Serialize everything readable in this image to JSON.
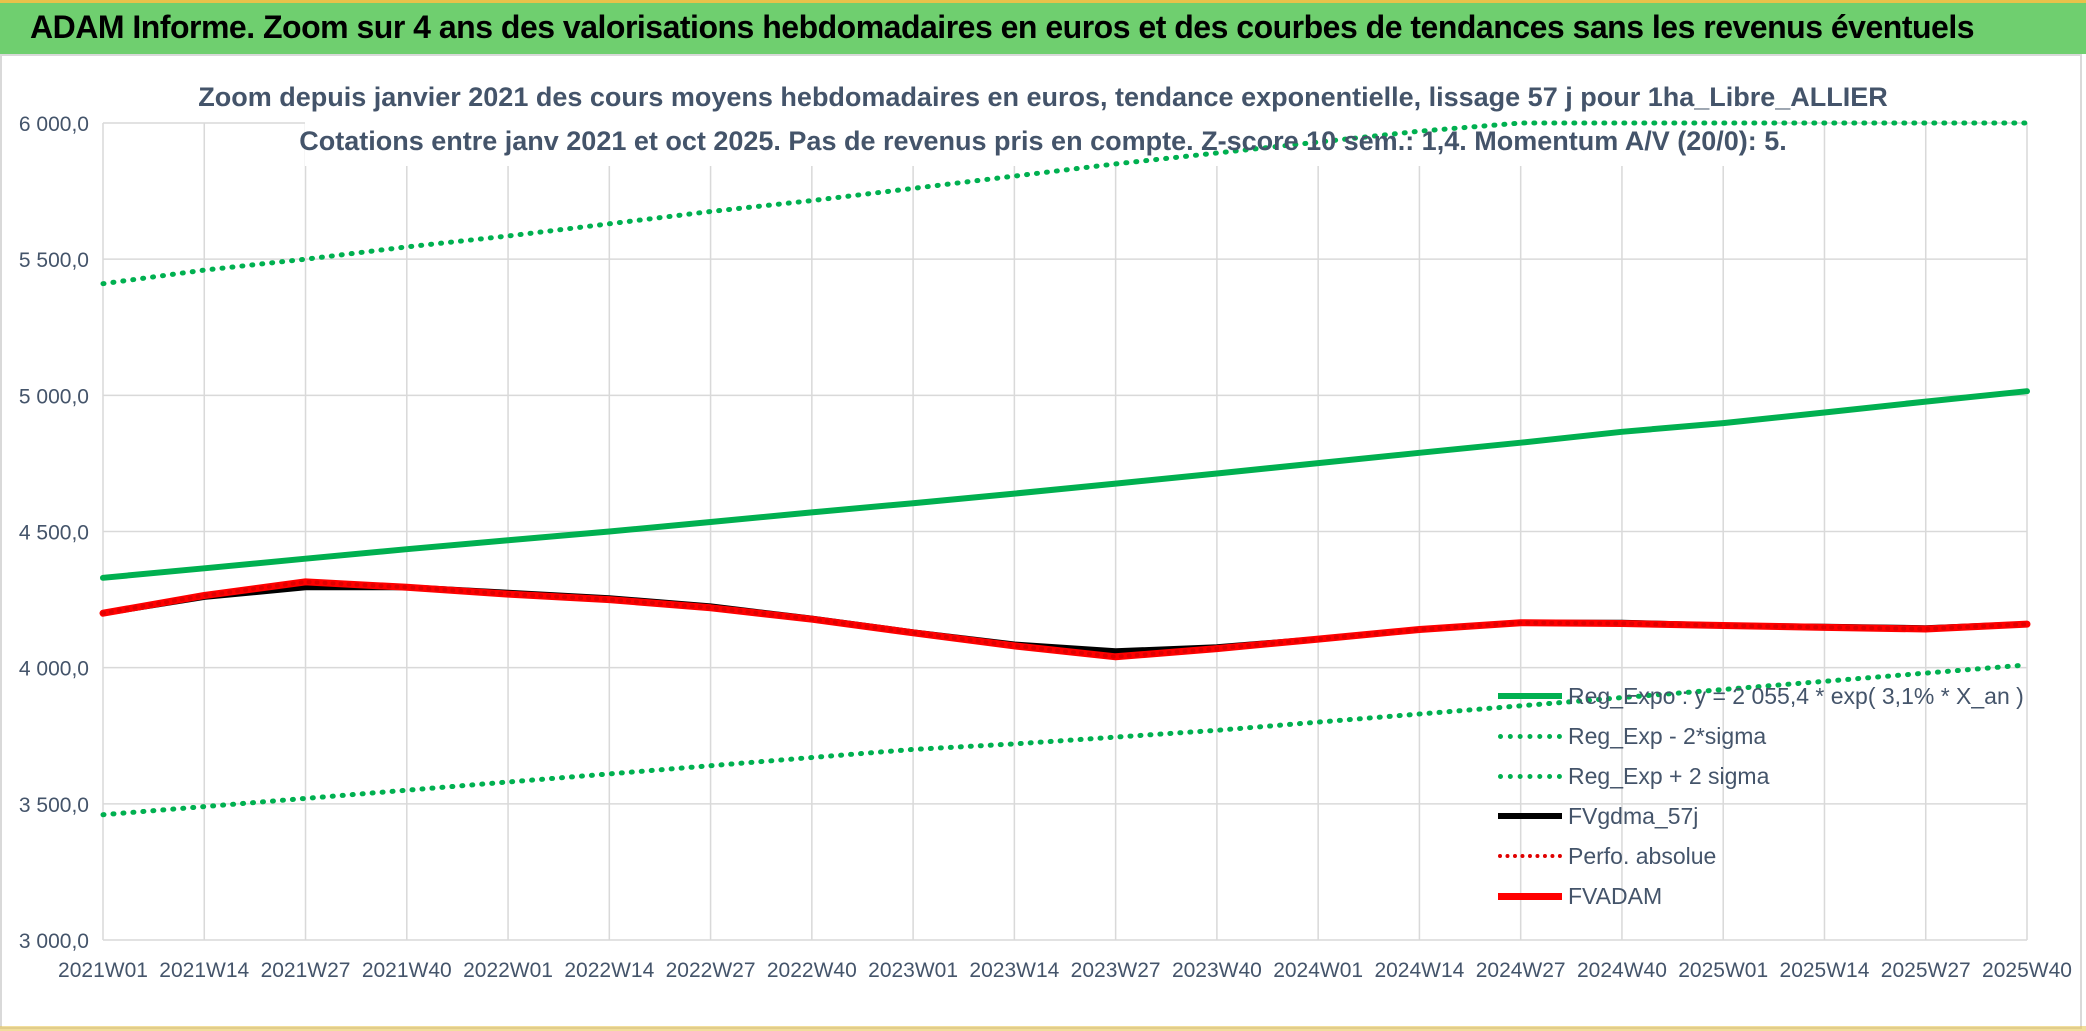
{
  "banner": {
    "title": "ADAM Informe. Zoom sur 4 ans des valorisations hebdomadaires en euros et des courbes de tendances sans les revenus éventuels"
  },
  "chart_data": {
    "type": "line",
    "title": "Zoom depuis janvier 2021 des cours moyens hebdomadaires en euros, tendance exponentielle, lissage 57 j pour 1ha_Libre_ALLIER",
    "subtitle": "Cotations entre janv 2021 et oct 2025. Pas de revenus pris en compte. Z-score 10 sem.: 1,4. Momentum A/V (20/0): 5.",
    "xlabel": "",
    "ylabel": "",
    "ylim": [
      3000,
      6000
    ],
    "yticks": [
      "3 000,0",
      "3 500,0",
      "4 000,0",
      "4 500,0",
      "5 000,0",
      "5 500,0",
      "6 000,0"
    ],
    "ytick_values": [
      3000,
      3500,
      4000,
      4500,
      5000,
      5500,
      6000
    ],
    "categories": [
      "2021W01",
      "2021W14",
      "2021W27",
      "2021W40",
      "2022W01",
      "2022W14",
      "2022W27",
      "2022W40",
      "2023W01",
      "2023W14",
      "2023W27",
      "2023W40",
      "2024W01",
      "2024W14",
      "2024W27",
      "2024W40",
      "2025W01",
      "2025W14",
      "2025W27",
      "2025W40"
    ],
    "grid": true,
    "legend_position": "bottom-right",
    "series": [
      {
        "name": "Reg_Expo : y = 2 055,4 * exp( 3,1% *  X_an )",
        "color": "#00b050",
        "style": "solid",
        "values": [
          4330,
          4365,
          4400,
          4435,
          4468,
          4500,
          4535,
          4570,
          4604,
          4639,
          4676,
          4713,
          4751,
          4789,
          4826,
          4866,
          4898,
          4937,
          4977,
          5015
        ]
      },
      {
        "name": "Reg_Exp - 2*sigma",
        "color": "#00b050",
        "style": "dotted",
        "values": [
          3460,
          3490,
          3520,
          3550,
          3580,
          3610,
          3640,
          3670,
          3700,
          3720,
          3745,
          3770,
          3800,
          3830,
          3860,
          3890,
          3920,
          3950,
          3980,
          4010
        ]
      },
      {
        "name": "Reg_Exp + 2 sigma",
        "color": "#00b050",
        "style": "dotted",
        "values": [
          5410,
          5460,
          5500,
          5545,
          5585,
          5630,
          5675,
          5715,
          5760,
          5805,
          5850,
          5890,
          5930,
          5970,
          6000,
          6000,
          6000,
          6000,
          6000,
          6000
        ]
      },
      {
        "name": "FVgdma_57j",
        "color": "#000000",
        "style": "solid",
        "values": [
          4200,
          4260,
          4295,
          4295,
          4275,
          4255,
          4225,
          4180,
          4130,
          4085,
          4060,
          4075,
          4105,
          4140,
          4165,
          4165,
          4155,
          4150,
          4145,
          4160
        ]
      },
      {
        "name": "Perfo. absolue",
        "color": "#e00000",
        "style": "dotted",
        "values": [
          4200,
          4265,
          4315,
          4295,
          4270,
          4250,
          4220,
          4178,
          4128,
          4080,
          4040,
          4070,
          4105,
          4140,
          4165,
          4162,
          4155,
          4148,
          4142,
          4160
        ]
      },
      {
        "name": "FVADAM",
        "color": "#ff0000",
        "style": "solid",
        "values": [
          4200,
          4265,
          4315,
          4295,
          4270,
          4250,
          4220,
          4178,
          4128,
          4080,
          4040,
          4070,
          4105,
          4140,
          4165,
          4162,
          4155,
          4148,
          4142,
          4160
        ]
      }
    ]
  }
}
